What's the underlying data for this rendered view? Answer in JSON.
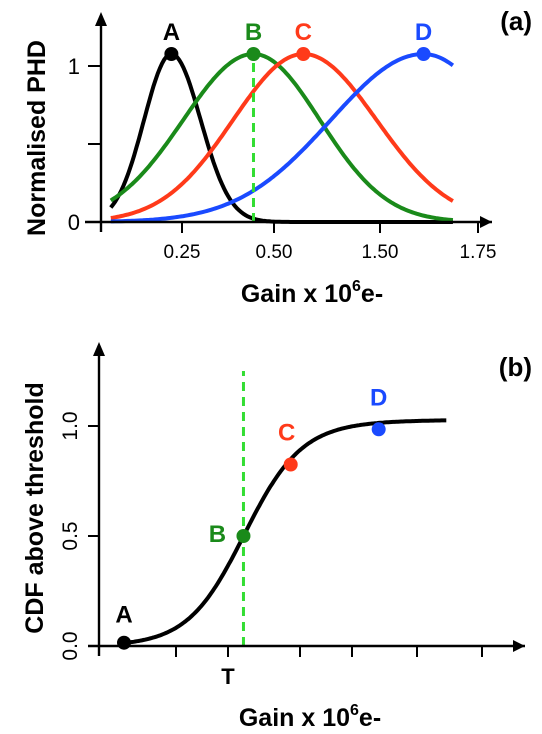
{
  "chart_data": [
    {
      "type": "line",
      "panel_label": "(a)",
      "xlabel": "Gain x 10",
      "xlabel_sup": "6",
      "xlabel_unit": "e-",
      "ylabel": "Normalised PHD",
      "x_tick_labels": [
        "0.25",
        "0.50",
        "1.50",
        "1.75"
      ],
      "y_tick_labels": [
        "0",
        "1"
      ],
      "ylim": [
        0,
        1.25
      ],
      "threshold_x": 1.56,
      "colors": {
        "A": "#000000",
        "B": "#1a8a1a",
        "C": "#ff3a1a",
        "D": "#1a4aff",
        "threshold": "#33dd33"
      },
      "series": [
        {
          "name": "A",
          "peak_x": 0.72,
          "peak_y": 1.05,
          "sigma_left": 0.28,
          "sigma_right": 0.3,
          "x_start": 0.1,
          "x_end": 3.6
        },
        {
          "name": "B",
          "peak_x": 1.56,
          "peak_y": 1.05,
          "sigma_left": 0.72,
          "sigma_right": 0.68,
          "x_start": 0.1,
          "x_end": 3.6
        },
        {
          "name": "C",
          "peak_x": 2.07,
          "peak_y": 1.05,
          "sigma_left": 0.72,
          "sigma_right": 0.75,
          "x_start": 0.1,
          "x_end": 3.6
        },
        {
          "name": "D",
          "peak_x": 3.3,
          "peak_y": 1.05,
          "sigma_left": 0.95,
          "sigma_right": 0.8,
          "x_start": 0.1,
          "x_end": 3.6
        }
      ]
    },
    {
      "type": "line",
      "panel_label": "(b)",
      "xlabel": "Gain x 10",
      "xlabel_sup": "6",
      "xlabel_unit": "e-",
      "ylabel": "CDF above threshold",
      "x_tick_labels": [
        "T"
      ],
      "y_tick_labels": [
        "0.0",
        "0.5",
        "1.0"
      ],
      "ylim": [
        0,
        1.25
      ],
      "threshold_x": 1.56,
      "curve": {
        "color": "#000000",
        "x_start": 0.27,
        "x_end": 3.75
      },
      "points": [
        {
          "name": "A",
          "x": 0.27,
          "y": 0.015,
          "color": "#000000"
        },
        {
          "name": "B",
          "x": 1.56,
          "y": 0.5,
          "color": "#1a8a1a"
        },
        {
          "name": "C",
          "x": 2.07,
          "y": 0.825,
          "color": "#ff3a1a"
        },
        {
          "name": "D",
          "x": 3.02,
          "y": 0.985,
          "color": "#1a4aff"
        }
      ]
    }
  ]
}
